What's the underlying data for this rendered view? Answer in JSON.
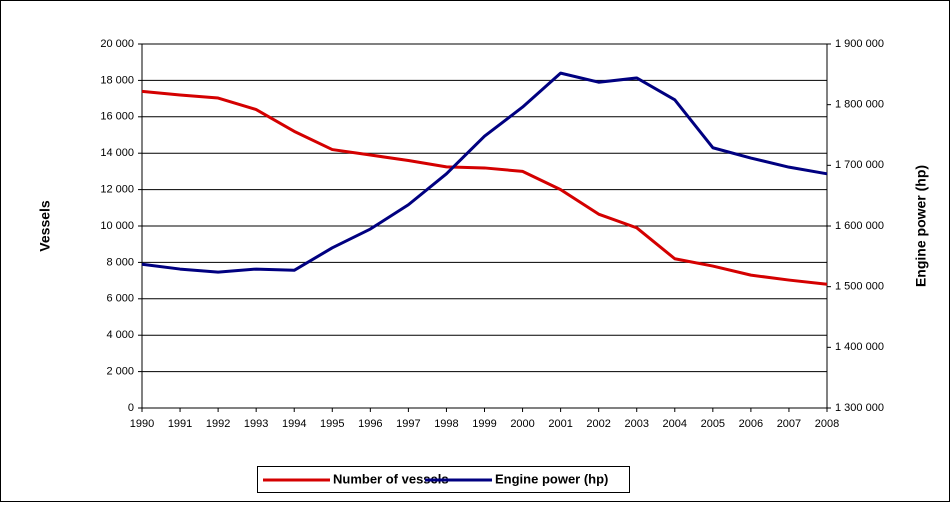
{
  "chart_data": {
    "type": "line",
    "y_label": "Vessels",
    "y2_label": "Engine power (hp)",
    "categories": [
      "1990",
      "1991",
      "1992",
      "1993",
      "1994",
      "1995",
      "1996",
      "1997",
      "1998",
      "1999",
      "2000",
      "2001",
      "2002",
      "2003",
      "2004",
      "2005",
      "2006",
      "2007",
      "2008"
    ],
    "series": [
      {
        "name": "Number of vessels",
        "color": "#d40000",
        "axis": "y",
        "values": [
          17400,
          17200,
          17030,
          16400,
          15200,
          14200,
          13900,
          13600,
          13250,
          13190,
          13000,
          12000,
          10650,
          9900,
          8200,
          7800,
          7300,
          7030,
          6800
        ]
      },
      {
        "name": "Engine power (hp)",
        "color": "#000080",
        "axis": "y2",
        "values": [
          1537000,
          1529000,
          1524000,
          1529000,
          1527000,
          1564000,
          1595000,
          1635000,
          1686000,
          1748000,
          1796000,
          1852000,
          1837000,
          1844000,
          1808000,
          1729000,
          1712000,
          1697000,
          1686000
        ]
      }
    ],
    "ylim": [
      0,
      20000
    ],
    "yticks": [
      0,
      {
        "value": 2000,
        "label": "2 000"
      },
      {
        "value": 4000,
        "label": "4 000"
      },
      {
        "value": 6000,
        "label": "6 000"
      },
      {
        "value": 8000,
        "label": "8 000"
      },
      {
        "value": 10000,
        "label": "10 000"
      },
      {
        "value": 12000,
        "label": "12 000"
      },
      {
        "value": 14000,
        "label": "14 000"
      },
      {
        "value": 16000,
        "label": "16 000"
      },
      {
        "value": 18000,
        "label": "18 000"
      },
      {
        "value": 20000,
        "label": "20 000"
      }
    ],
    "y2lim": [
      1300000,
      1900000
    ],
    "y2ticks": [
      {
        "value": 1300000,
        "label": "1 300 000"
      },
      {
        "value": 1400000,
        "label": "1 400 000"
      },
      {
        "value": 1500000,
        "label": "1 500 000"
      },
      {
        "value": 1600000,
        "label": "1 600 000"
      },
      {
        "value": 1700000,
        "label": "1 700 000"
      },
      {
        "value": 1800000,
        "label": "1 800 000"
      },
      {
        "value": 1900000,
        "label": "1 900 000"
      }
    ],
    "grid": true,
    "legend": "bottom"
  }
}
